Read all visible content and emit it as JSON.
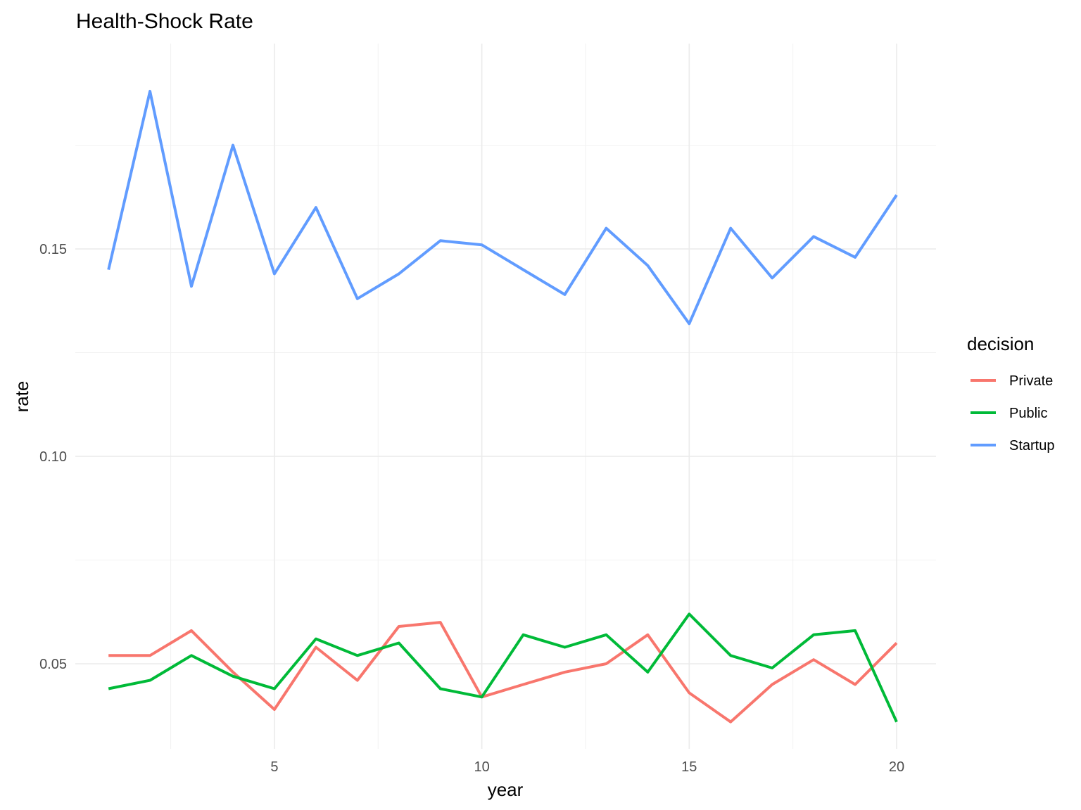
{
  "chart_data": {
    "type": "line",
    "title": "Health-Shock Rate",
    "xlabel": "year",
    "ylabel": "rate",
    "xlim": [
      0.2,
      20.95
    ],
    "ylim": [
      0.0295,
      0.1995
    ],
    "x_ticks": [
      5,
      10,
      15,
      20
    ],
    "x_tick_labels": [
      "5",
      "10",
      "15",
      "20"
    ],
    "y_ticks": [
      0.05,
      0.1,
      0.15
    ],
    "y_tick_labels": [
      "0.05",
      "0.10",
      "0.15"
    ],
    "grid": true,
    "legend": {
      "title": "decision",
      "position": "right"
    },
    "x": [
      1,
      2,
      3,
      4,
      5,
      6,
      7,
      8,
      9,
      10,
      11,
      12,
      13,
      14,
      15,
      16,
      17,
      18,
      19,
      20
    ],
    "series": [
      {
        "name": "Private",
        "color": "#F8766D",
        "values": [
          0.052,
          0.052,
          0.058,
          0.048,
          0.039,
          0.054,
          0.046,
          0.059,
          0.06,
          0.042,
          0.045,
          0.048,
          0.05,
          0.057,
          0.043,
          0.036,
          0.045,
          0.051,
          0.045,
          0.055
        ]
      },
      {
        "name": "Public",
        "color": "#00BA38",
        "values": [
          0.044,
          0.046,
          0.052,
          0.047,
          0.044,
          0.056,
          0.052,
          0.055,
          0.044,
          0.042,
          0.057,
          0.054,
          0.057,
          0.048,
          0.062,
          0.052,
          0.049,
          0.057,
          0.058,
          0.036
        ]
      },
      {
        "name": "Startup",
        "color": "#619CFF",
        "values": [
          0.145,
          0.188,
          0.141,
          0.175,
          0.144,
          0.16,
          0.138,
          0.144,
          0.152,
          0.151,
          0.145,
          0.139,
          0.155,
          0.146,
          0.132,
          0.155,
          0.143,
          0.153,
          0.148,
          0.163
        ]
      }
    ]
  }
}
